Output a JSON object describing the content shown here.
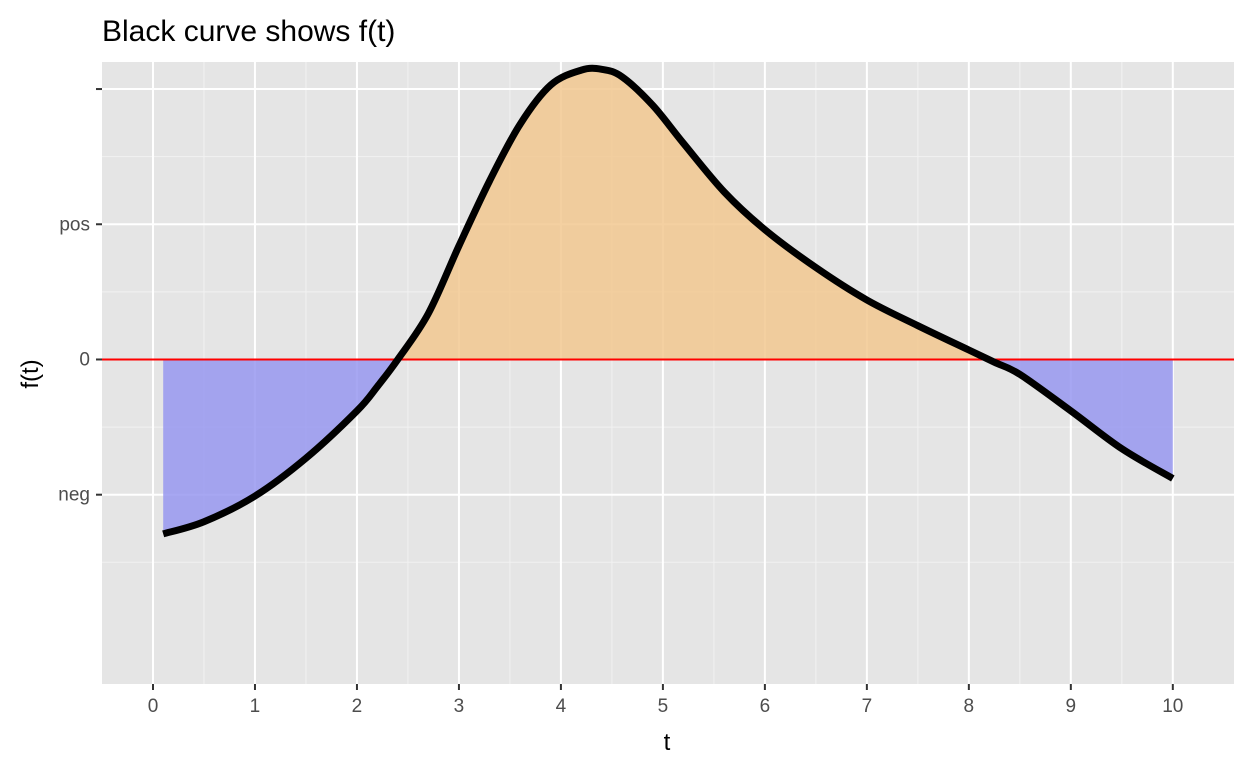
{
  "chart_data": {
    "type": "area",
    "title": "Black curve shows f(t)",
    "xlabel": "t",
    "ylabel": "f(t)",
    "xlim": [
      -0.5,
      10.6
    ],
    "ylim": [
      -1.2,
      1.1
    ],
    "x_ticks": [
      {
        "value": 0,
        "label": "0"
      },
      {
        "value": 1,
        "label": "1"
      },
      {
        "value": 2,
        "label": "2"
      },
      {
        "value": 3,
        "label": "3"
      },
      {
        "value": 4,
        "label": "4"
      },
      {
        "value": 5,
        "label": "5"
      },
      {
        "value": 6,
        "label": "6"
      },
      {
        "value": 7,
        "label": "7"
      },
      {
        "value": 8,
        "label": "8"
      },
      {
        "value": 9,
        "label": "9"
      },
      {
        "value": 10,
        "label": "10"
      }
    ],
    "y_ticks": [
      {
        "value": -0.5,
        "label": "neg"
      },
      {
        "value": 0,
        "label": "0"
      },
      {
        "value": 0.5,
        "label": "pos"
      },
      {
        "value": 1,
        "label": ""
      }
    ],
    "reference_line": {
      "y": 0,
      "color": "#ff0000"
    },
    "series": [
      {
        "x": [
          0.1,
          0.5,
          1,
          1.5,
          2,
          2.2,
          2.4,
          2.7,
          3,
          3.3,
          3.6,
          3.9,
          4.2,
          4.4,
          4.6,
          4.9,
          5.2,
          5.6,
          6,
          6.5,
          7,
          7.5,
          8,
          8.25,
          8.5,
          9,
          9.5,
          10
        ],
        "y": [
          -0.645,
          -0.6,
          -0.505,
          -0.365,
          -0.19,
          -0.1,
          0.0,
          0.17,
          0.42,
          0.66,
          0.87,
          1.015,
          1.07,
          1.073,
          1.045,
          0.94,
          0.8,
          0.62,
          0.48,
          0.34,
          0.22,
          0.125,
          0.035,
          -0.01,
          -0.055,
          -0.19,
          -0.33,
          -0.44
        ],
        "line_color": "#000000",
        "positive_fill": "#f2c890",
        "negative_fill": "#9898f0"
      }
    ],
    "grid": true,
    "background": "#e5e5e5",
    "legend": "none"
  }
}
